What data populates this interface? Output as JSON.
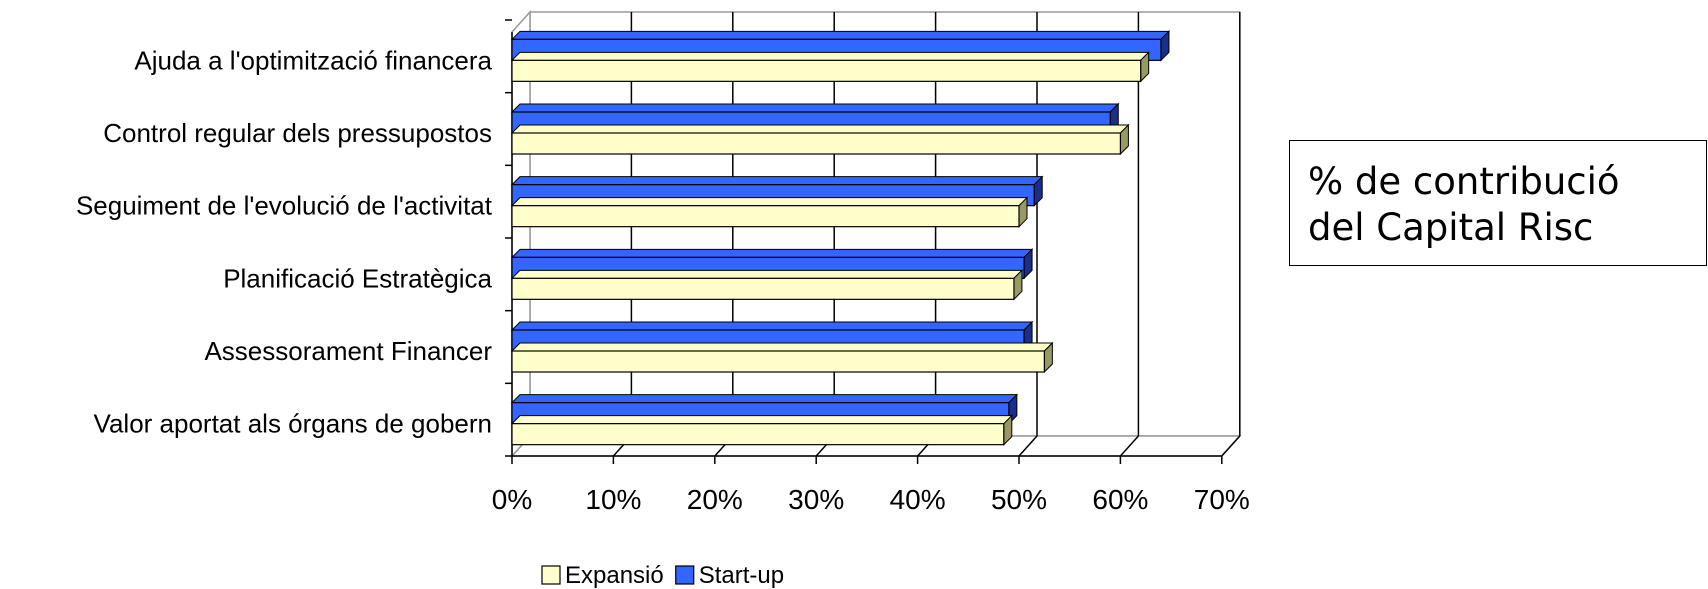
{
  "chart_data": {
    "type": "bar",
    "orientation": "horizontal",
    "style": "3d",
    "categories": [
      "Ajuda a l'optimització financera",
      "Control regular dels pressupostos",
      "Seguiment de l'evolució de l'activitat",
      "Planificació Estratègica",
      "Assessorament Financer",
      "Valor aportat als órgans de gobern"
    ],
    "series": [
      {
        "name": "Expansió",
        "color": "#FFFFCC",
        "side_color": "#999966",
        "values": [
          62,
          60,
          50,
          49.5,
          52.5,
          48.5
        ]
      },
      {
        "name": "Start-up",
        "color": "#3366FF",
        "side_color": "#1A2E8C",
        "values": [
          64,
          59,
          51.5,
          50.5,
          50.5,
          49
        ]
      }
    ],
    "x_ticks": [
      "0%",
      "10%",
      "20%",
      "30%",
      "40%",
      "50%",
      "60%",
      "70%"
    ],
    "xlim": [
      0,
      70
    ],
    "grid": true,
    "legend_position": "bottom"
  },
  "annotation": {
    "line1": "% de contribució",
    "line2": "del Capital Risc"
  }
}
